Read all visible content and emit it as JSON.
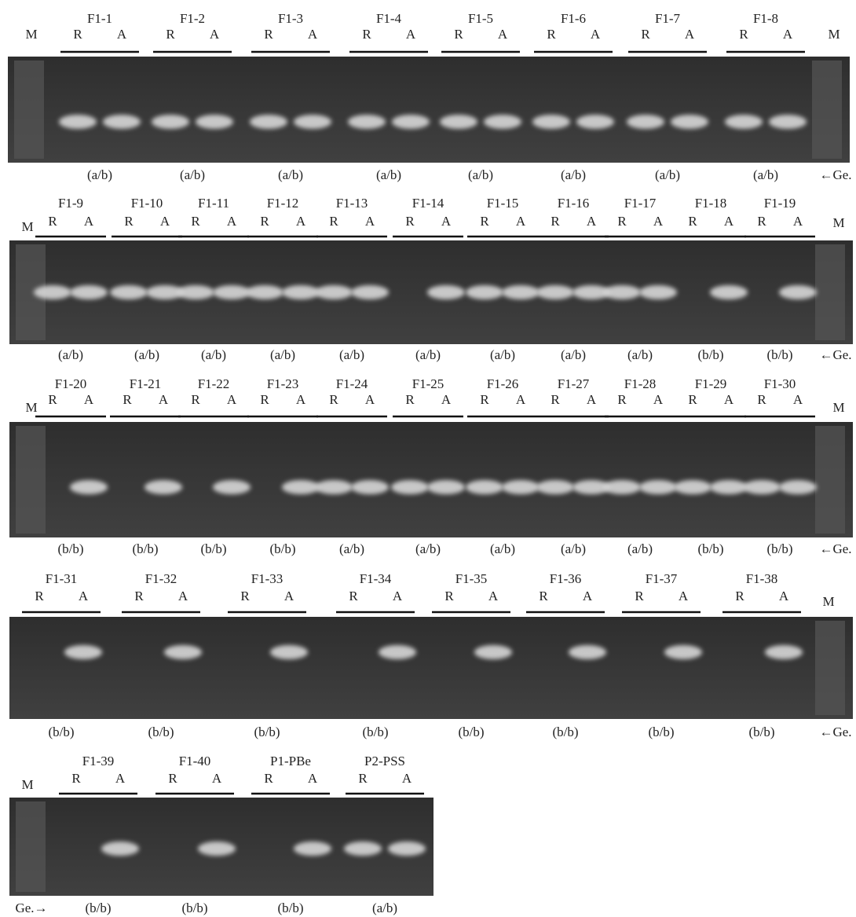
{
  "panels": [
    {
      "marker_left": "M",
      "marker_right": "M",
      "genotype_label": "←Ge.",
      "lanes": [
        {
          "sample": "F1-1",
          "r": "R",
          "a": "A",
          "genotype": "(a/b)"
        },
        {
          "sample": "F1-2",
          "r": "R",
          "a": "A",
          "genotype": "(a/b)"
        },
        {
          "sample": "F1-3",
          "r": "R",
          "a": "A",
          "genotype": "(a/b)"
        },
        {
          "sample": "F1-4",
          "r": "R",
          "a": "A",
          "genotype": "(a/b)"
        },
        {
          "sample": "F1-5",
          "r": "R",
          "a": "A",
          "genotype": "(a/b)"
        },
        {
          "sample": "F1-6",
          "r": "R",
          "a": "A",
          "genotype": "(a/b)"
        },
        {
          "sample": "F1-7",
          "r": "R",
          "a": "A",
          "genotype": "(a/b)"
        },
        {
          "sample": "F1-8",
          "r": "R",
          "a": "A",
          "genotype": "(a/b)"
        }
      ]
    },
    {
      "marker_left": "M",
      "marker_right": "M",
      "genotype_label": "←Ge.",
      "lanes": [
        {
          "sample": "F1-9",
          "r": "R",
          "a": "A",
          "genotype": "(a/b)"
        },
        {
          "sample": "F1-10",
          "r": "R",
          "a": "A",
          "genotype": "(a/b)"
        },
        {
          "sample": "F1-11",
          "r": "R",
          "a": "A",
          "genotype": "(a/b)"
        },
        {
          "sample": "F1-12",
          "r": "R",
          "a": "A",
          "genotype": "(a/b)"
        },
        {
          "sample": "F1-13",
          "r": "R",
          "a": "A",
          "genotype": "(a/b)"
        },
        {
          "sample": "F1-14",
          "r": "R",
          "a": "A",
          "genotype": "(a/b)"
        },
        {
          "sample": "F1-15",
          "r": "R",
          "a": "A",
          "genotype": "(a/b)"
        },
        {
          "sample": "F1-16",
          "r": "R",
          "a": "A",
          "genotype": "(a/b)"
        },
        {
          "sample": "F1-17",
          "r": "R",
          "a": "A",
          "genotype": "(a/b)"
        },
        {
          "sample": "F1-18",
          "r": "R",
          "a": "A",
          "genotype": "(b/b)"
        },
        {
          "sample": "F1-19",
          "r": "R",
          "a": "A",
          "genotype": "(b/b)"
        }
      ]
    },
    {
      "marker_left": "M",
      "marker_right": "M",
      "genotype_label": "←Ge.",
      "lanes": [
        {
          "sample": "F1-20",
          "r": "R",
          "a": "A",
          "genotype": "(b/b)"
        },
        {
          "sample": "F1-21",
          "r": "R",
          "a": "A",
          "genotype": "(b/b)"
        },
        {
          "sample": "F1-22",
          "r": "R",
          "a": "A",
          "genotype": "(b/b)"
        },
        {
          "sample": "F1-23",
          "r": "R",
          "a": "A",
          "genotype": "(b/b)"
        },
        {
          "sample": "F1-24",
          "r": "R",
          "a": "A",
          "genotype": "(a/b)"
        },
        {
          "sample": "F1-25",
          "r": "R",
          "a": "A",
          "genotype": "(a/b)"
        },
        {
          "sample": "F1-26",
          "r": "R",
          "a": "A",
          "genotype": "(a/b)"
        },
        {
          "sample": "F1-27",
          "r": "R",
          "a": "A",
          "genotype": "(a/b)"
        },
        {
          "sample": "F1-28",
          "r": "R",
          "a": "A",
          "genotype": "(a/b)"
        },
        {
          "sample": "F1-29",
          "r": "R",
          "a": "A",
          "genotype": "(b/b)"
        },
        {
          "sample": "F1-30",
          "r": "R",
          "a": "A",
          "genotype": "(b/b)"
        }
      ]
    },
    {
      "marker_right": "M",
      "genotype_label": "←Ge.",
      "lanes": [
        {
          "sample": "F1-31",
          "r": "R",
          "a": "A",
          "genotype": "(b/b)"
        },
        {
          "sample": "F1-32",
          "r": "R",
          "a": "A",
          "genotype": "(b/b)"
        },
        {
          "sample": "F1-33",
          "r": "R",
          "a": "A",
          "genotype": "(b/b)"
        },
        {
          "sample": "F1-34",
          "r": "R",
          "a": "A",
          "genotype": "(b/b)"
        },
        {
          "sample": "F1-35",
          "r": "R",
          "a": "A",
          "genotype": "(b/b)"
        },
        {
          "sample": "F1-36",
          "r": "R",
          "a": "A",
          "genotype": "(b/b)"
        },
        {
          "sample": "F1-37",
          "r": "R",
          "a": "A",
          "genotype": "(b/b)"
        },
        {
          "sample": "F1-38",
          "r": "R",
          "a": "A",
          "genotype": "(b/b)"
        }
      ]
    },
    {
      "marker_left": "M",
      "genotype_label": "Ge.→",
      "lanes": [
        {
          "sample": "F1-39",
          "r": "R",
          "a": "A",
          "genotype": "(b/b)"
        },
        {
          "sample": "F1-40",
          "r": "R",
          "a": "A",
          "genotype": "(b/b)"
        },
        {
          "sample": "P1-PBe",
          "r": "R",
          "a": "A",
          "genotype": "(b/b)"
        },
        {
          "sample": "P2-PSS",
          "r": "R",
          "a": "A",
          "genotype": "(a/b)"
        }
      ]
    }
  ]
}
